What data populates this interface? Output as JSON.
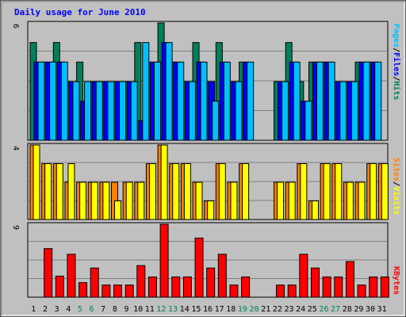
{
  "chart_data": [
    {
      "type": "bar",
      "title": "Daily usage for June 2010",
      "panel": "hits-files-pages",
      "categories": [
        "1",
        "2",
        "3",
        "4",
        "5",
        "6",
        "7",
        "8",
        "9",
        "10",
        "11",
        "12",
        "13",
        "14",
        "15",
        "16",
        "17",
        "18",
        "19",
        "20",
        "21",
        "22",
        "23",
        "24",
        "25",
        "26",
        "27",
        "28",
        "29",
        "30",
        "31"
      ],
      "ymax_label": "6",
      "ylim": [
        0,
        6
      ],
      "series": [
        {
          "name": "Hits",
          "color": "#00805c",
          "values": [
            5,
            4,
            5,
            3,
            4,
            3,
            3,
            3,
            3,
            5,
            4,
            6,
            4,
            3,
            5,
            3,
            5,
            3,
            4,
            0,
            0,
            3,
            5,
            3,
            4,
            4,
            3,
            3,
            4,
            4,
            0
          ]
        },
        {
          "name": "Files",
          "color": "#0000ff",
          "values": [
            4,
            4,
            4,
            3,
            2,
            3,
            3,
            3,
            3,
            1,
            4,
            5,
            4,
            3,
            4,
            3,
            4,
            3,
            4,
            0,
            0,
            3,
            4,
            2,
            4,
            4,
            3,
            3,
            4,
            4,
            0
          ]
        },
        {
          "name": "Pages",
          "color": "#00c0ff",
          "values": [
            4,
            4,
            4,
            3,
            3,
            3,
            3,
            3,
            3,
            5,
            4,
            5,
            4,
            3,
            4,
            2,
            4,
            3,
            4,
            0,
            0,
            3,
            4,
            2,
            4,
            4,
            3,
            3,
            4,
            4,
            0
          ]
        }
      ]
    },
    {
      "type": "bar",
      "panel": "sites-visits",
      "categories": [
        "1",
        "2",
        "3",
        "4",
        "5",
        "6",
        "7",
        "8",
        "9",
        "10",
        "11",
        "12",
        "13",
        "14",
        "15",
        "16",
        "17",
        "18",
        "19",
        "20",
        "21",
        "22",
        "23",
        "24",
        "25",
        "26",
        "27",
        "28",
        "29",
        "30",
        "31"
      ],
      "ymax_label": "4",
      "ylim": [
        0,
        4
      ],
      "series": [
        {
          "name": "Sites",
          "color": "#ff8000",
          "values": [
            4,
            3,
            3,
            2,
            2,
            2,
            2,
            2,
            2,
            2,
            3,
            4,
            3,
            3,
            2,
            1,
            3,
            2,
            3,
            0,
            0,
            2,
            2,
            3,
            1,
            3,
            3,
            2,
            2,
            3,
            3
          ]
        },
        {
          "name": "Visits",
          "color": "#ffff00",
          "values": [
            4,
            3,
            3,
            3,
            2,
            2,
            2,
            1,
            2,
            2,
            3,
            4,
            3,
            3,
            2,
            1,
            3,
            2,
            3,
            0,
            0,
            2,
            2,
            3,
            1,
            3,
            3,
            2,
            2,
            3,
            3
          ]
        }
      ]
    },
    {
      "type": "bar",
      "panel": "kbytes",
      "categories": [
        "1",
        "2",
        "3",
        "4",
        "5",
        "6",
        "7",
        "8",
        "9",
        "10",
        "11",
        "12",
        "13",
        "14",
        "15",
        "16",
        "17",
        "18",
        "19",
        "20",
        "21",
        "22",
        "23",
        "24",
        "25",
        "26",
        "27",
        "28",
        "29",
        "30",
        "31"
      ],
      "ymax_label": "9",
      "ylim": [
        0,
        9
      ],
      "series": [
        {
          "name": "KBytes",
          "color": "#ff0000",
          "values": [
            0,
            6,
            2.6,
            5.3,
            1.8,
            3.6,
            1.5,
            1.5,
            1.5,
            3.9,
            2.5,
            9,
            2.5,
            2.5,
            7.3,
            3.6,
            5.3,
            1.5,
            2.5,
            0,
            0,
            1.5,
            1.5,
            5.3,
            3.6,
            2.5,
            2.5,
            4.4,
            1.5,
            2.5,
            2.5
          ]
        }
      ]
    }
  ],
  "legend": {
    "top": [
      {
        "text": "Pages",
        "color": "#00c0ff"
      },
      {
        "text": "/",
        "color": "#000000"
      },
      {
        "text": "Files",
        "color": "#0000ff"
      },
      {
        "text": "/",
        "color": "#000000"
      },
      {
        "text": "Hits",
        "color": "#00805c"
      }
    ],
    "middle": [
      {
        "text": "Sites",
        "color": "#ff8000"
      },
      {
        "text": "/",
        "color": "#000000"
      },
      {
        "text": "Visits",
        "color": "#ffff00"
      }
    ],
    "bottom": [
      {
        "text": "KBytes",
        "color": "#ff0000"
      }
    ]
  },
  "weekend_days": [
    5,
    6,
    12,
    13,
    19,
    20,
    26,
    27
  ],
  "colors": {
    "background": "#c0c0c0",
    "title": "#0000ff",
    "gridline": "#808080",
    "weekday_label": "#000000",
    "weekend_label": "#00805c"
  }
}
